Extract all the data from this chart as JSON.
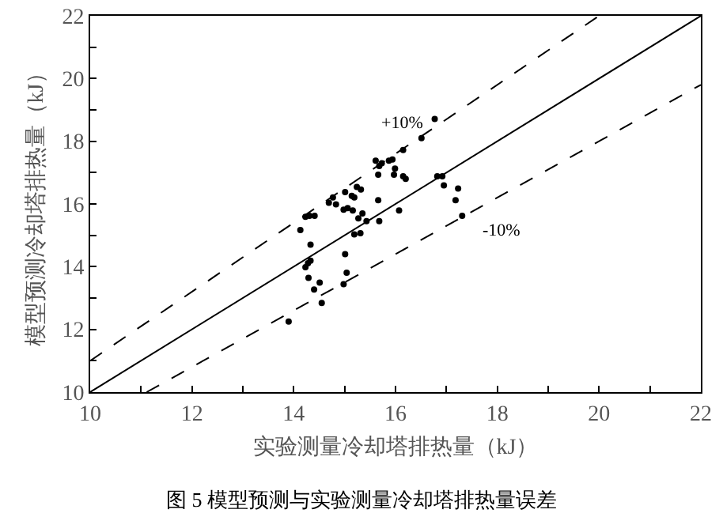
{
  "chart_data": {
    "type": "scatter",
    "title": "图 5 模型预测与实验测量冷却塔排热量误差",
    "xlabel": "实验测量冷却塔排热量（kJ）",
    "ylabel": "模型预测冷却塔排热量（kJ）",
    "xlim": [
      10,
      22
    ],
    "ylim": [
      10,
      22
    ],
    "xticks": [
      10,
      {
        "value": 11,
        "label": null
      },
      12,
      {
        "value": 13,
        "label": null
      },
      14,
      {
        "value": 15,
        "label": null
      },
      16,
      {
        "value": 17,
        "label": null
      },
      18,
      {
        "value": 19,
        "label": null
      },
      20,
      {
        "value": 21,
        "label": null
      },
      22
    ],
    "yticks": [
      10,
      {
        "value": 11,
        "label": null
      },
      12,
      {
        "value": 13,
        "label": null
      },
      14,
      {
        "value": 15,
        "label": null
      },
      16,
      {
        "value": 17,
        "label": null
      },
      18,
      {
        "value": 19,
        "label": null
      },
      20,
      {
        "value": 21,
        "label": null
      },
      22
    ],
    "grid": false,
    "annotations": [
      "+10%",
      "-10%"
    ],
    "series": [
      {
        "color": "#000000",
        "marker": "circle",
        "x": [
          13.9,
          14.13,
          14.23,
          14.31,
          14.41,
          14.33,
          14.28,
          14.23,
          14.33,
          14.29,
          14.4,
          14.51,
          14.55,
          14.69,
          14.77,
          14.83,
          14.98,
          15.01,
          15.06,
          15.14,
          15.19,
          15.16,
          15.24,
          15.32,
          15.27,
          15.35,
          15.43,
          15.19,
          15.31,
          15.01,
          15.04,
          14.98,
          15.61,
          15.68,
          15.73,
          15.66,
          15.66,
          15.68,
          15.87,
          15.94,
          15.99,
          15.97,
          16.07,
          16.15,
          16.15,
          16.2,
          16.51,
          16.77,
          16.82,
          16.92,
          16.95,
          17.18,
          17.23,
          17.31
        ],
        "values": [
          12.25,
          15.17,
          15.59,
          15.62,
          15.62,
          14.7,
          14.11,
          13.98,
          14.19,
          13.64,
          13.27,
          13.49,
          12.84,
          16.04,
          16.21,
          15.99,
          15.82,
          16.38,
          15.87,
          16.26,
          16.21,
          15.79,
          16.54,
          16.46,
          15.54,
          15.7,
          15.45,
          15.03,
          15.07,
          14.4,
          13.81,
          13.44,
          17.38,
          17.21,
          17.3,
          16.93,
          16.12,
          15.45,
          17.38,
          17.42,
          17.13,
          16.93,
          15.79,
          17.72,
          16.88,
          16.8,
          18.1,
          18.71,
          16.88,
          16.88,
          16.59,
          16.12,
          16.49,
          15.62
        ]
      },
      {
        "type": "line",
        "color": "#000000",
        "marker": "none",
        "line_style": "solid",
        "x": [
          10,
          22
        ],
        "values": [
          10,
          22
        ]
      },
      {
        "type": "line",
        "color": "#000000",
        "marker": "none",
        "line_style": "dashed",
        "x": [
          10,
          20
        ],
        "values": [
          11,
          22
        ]
      },
      {
        "type": "line",
        "color": "#000000",
        "marker": "none",
        "line_style": "dashed",
        "x": [
          11.11,
          22
        ],
        "values": [
          10,
          19.8
        ]
      }
    ]
  }
}
